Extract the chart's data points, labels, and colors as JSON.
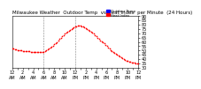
{
  "title": "Milwaukee Weather Outdoor Temperature vs Heat Index per Minute (24 Hours)",
  "background_color": "#ffffff",
  "legend_labels": [
    "Outdoor Temp",
    "Heat Index"
  ],
  "legend_colors": [
    "#0000ff",
    "#ff0000"
  ],
  "x_ticks_count": 25,
  "ylim": [
    30,
    90
  ],
  "xlim": [
    0,
    1440
  ],
  "vlines": [
    360,
    720
  ],
  "temp_data_x": [
    0,
    15,
    30,
    45,
    60,
    75,
    90,
    105,
    120,
    135,
    150,
    165,
    180,
    195,
    210,
    225,
    240,
    255,
    270,
    285,
    300,
    315,
    330,
    345,
    360,
    375,
    390,
    405,
    420,
    435,
    450,
    465,
    480,
    495,
    510,
    525,
    540,
    555,
    570,
    585,
    600,
    615,
    630,
    645,
    660,
    675,
    690,
    705,
    720,
    735,
    750,
    765,
    780,
    795,
    810,
    825,
    840,
    855,
    870,
    885,
    900,
    915,
    930,
    945,
    960,
    975,
    990,
    1005,
    1020,
    1035,
    1050,
    1065,
    1080,
    1095,
    1110,
    1125,
    1140,
    1155,
    1170,
    1185,
    1200,
    1215,
    1230,
    1245,
    1260,
    1275,
    1290,
    1305,
    1320,
    1335,
    1350,
    1365,
    1380,
    1395,
    1410,
    1425,
    1440
  ],
  "temp_data_y": [
    52,
    52,
    51,
    51,
    50,
    50,
    50,
    50,
    49,
    49,
    49,
    49,
    49,
    49,
    48,
    48,
    48,
    48,
    48,
    48,
    48,
    48,
    48,
    48,
    48,
    49,
    50,
    51,
    52,
    53,
    54,
    55,
    57,
    58,
    60,
    62,
    64,
    65,
    67,
    68,
    70,
    71,
    72,
    73,
    74,
    75,
    76,
    77,
    78,
    78,
    79,
    79,
    79,
    78,
    78,
    77,
    76,
    75,
    74,
    73,
    72,
    71,
    70,
    68,
    67,
    65,
    64,
    62,
    61,
    59,
    58,
    56,
    55,
    53,
    52,
    50,
    49,
    48,
    47,
    46,
    45,
    44,
    43,
    42,
    41,
    40,
    39,
    38,
    38,
    37,
    37,
    36,
    36,
    36,
    35,
    35,
    35
  ],
  "dot_color": "#ff0000",
  "dot_size": 1.5,
  "tick_label_fontsize": 3.5,
  "ylabel_fontsize": 4,
  "title_fontsize": 4
}
